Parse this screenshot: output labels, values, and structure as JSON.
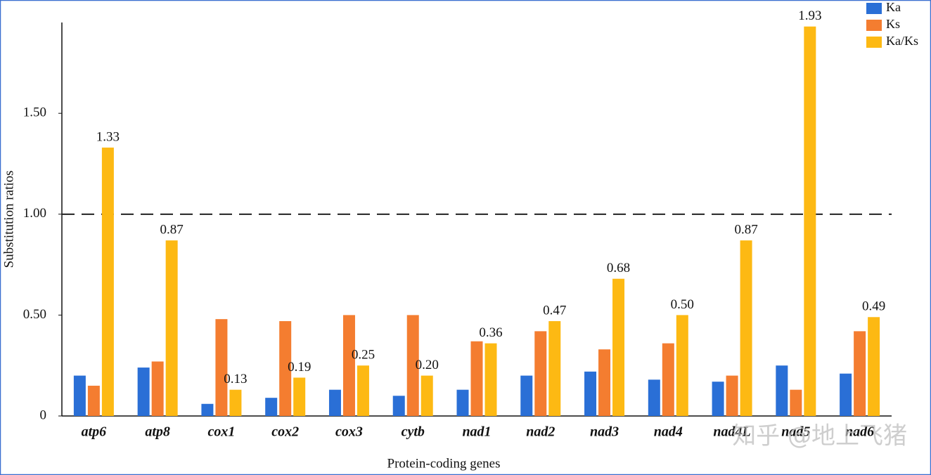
{
  "chart_data": {
    "type": "bar",
    "x_label": "Protein-coding genes",
    "y_label": "Substitution ratios",
    "categories": [
      "atp6",
      "atp8",
      "cox1",
      "cox2",
      "cox3",
      "cytb",
      "nad1",
      "nad2",
      "nad3",
      "nad4",
      "nad4L",
      "nad5",
      "nad6"
    ],
    "series": [
      {
        "name": "Ka",
        "color": "#2a6fd6",
        "values": [
          0.2,
          0.24,
          0.06,
          0.09,
          0.13,
          0.1,
          0.13,
          0.2,
          0.22,
          0.18,
          0.17,
          0.25,
          0.21
        ]
      },
      {
        "name": "Ks",
        "color": "#f47d30",
        "values": [
          0.15,
          0.27,
          0.48,
          0.47,
          0.5,
          0.5,
          0.37,
          0.42,
          0.33,
          0.36,
          0.2,
          0.13,
          0.42
        ]
      },
      {
        "name": "Ka/Ks",
        "color": "#fdb913",
        "values": [
          1.33,
          0.87,
          0.13,
          0.19,
          0.25,
          0.2,
          0.36,
          0.47,
          0.68,
          0.5,
          0.87,
          1.93,
          0.49
        ],
        "value_labels": [
          "1.33",
          "0.87",
          "0.13",
          "0.19",
          "0.25",
          "0.20",
          "0.36",
          "0.47",
          "0.68",
          "0.50",
          "0.87",
          "1.93",
          "0.49"
        ]
      }
    ],
    "ylim": [
      0,
      1.95
    ],
    "yticks": [
      0,
      {
        "value": 0.5,
        "label": "0.50"
      },
      {
        "value": 1,
        "label": "1.00"
      },
      {
        "value": 1.5,
        "label": "1.50"
      }
    ],
    "reference_line": 1,
    "legend": "top-right",
    "watermark": "知乎 @地上飞猪"
  }
}
